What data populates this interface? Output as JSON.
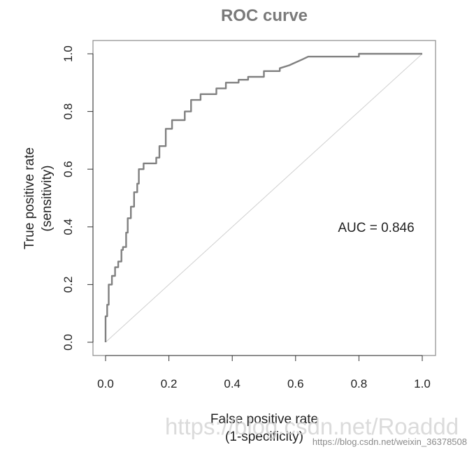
{
  "chart_data": {
    "type": "line",
    "title": "ROC curve",
    "xlabel_line1": "False positive rate",
    "xlabel_line2": "(1-specificity)",
    "ylabel_line1": "True positive rate",
    "ylabel_line2": "(sensitivity)",
    "xlim": [
      0,
      1
    ],
    "ylim": [
      0,
      1
    ],
    "x_ticks": [
      "0.0",
      "0.2",
      "0.4",
      "0.6",
      "0.8",
      "1.0"
    ],
    "y_ticks": [
      "0.0",
      "0.2",
      "0.4",
      "0.6",
      "0.8",
      "1.0"
    ],
    "grid": false,
    "annotation": "AUC = 0.846",
    "series": [
      {
        "color": "#808080",
        "x": [
          0.0,
          0.0,
          0.005,
          0.005,
          0.01,
          0.01,
          0.02,
          0.02,
          0.03,
          0.03,
          0.04,
          0.04,
          0.05,
          0.05,
          0.055,
          0.055,
          0.065,
          0.065,
          0.07,
          0.07,
          0.08,
          0.08,
          0.09,
          0.09,
          0.1,
          0.1,
          0.105,
          0.105,
          0.12,
          0.12,
          0.16,
          0.16,
          0.17,
          0.17,
          0.19,
          0.19,
          0.21,
          0.21,
          0.25,
          0.25,
          0.27,
          0.27,
          0.3,
          0.3,
          0.35,
          0.35,
          0.38,
          0.38,
          0.42,
          0.42,
          0.45,
          0.45,
          0.5,
          0.5,
          0.55,
          0.55,
          0.58,
          0.6,
          0.62,
          0.64,
          0.64,
          0.7,
          0.8,
          0.8,
          1.0
        ],
        "y": [
          0.0,
          0.09,
          0.09,
          0.13,
          0.13,
          0.2,
          0.2,
          0.23,
          0.23,
          0.26,
          0.26,
          0.28,
          0.28,
          0.32,
          0.32,
          0.33,
          0.33,
          0.38,
          0.38,
          0.43,
          0.43,
          0.47,
          0.47,
          0.52,
          0.52,
          0.55,
          0.55,
          0.6,
          0.6,
          0.62,
          0.62,
          0.64,
          0.64,
          0.68,
          0.68,
          0.74,
          0.74,
          0.77,
          0.77,
          0.8,
          0.8,
          0.84,
          0.84,
          0.86,
          0.86,
          0.88,
          0.88,
          0.9,
          0.9,
          0.91,
          0.91,
          0.92,
          0.92,
          0.94,
          0.94,
          0.95,
          0.96,
          0.97,
          0.98,
          0.99,
          0.99,
          0.99,
          0.99,
          1.0,
          1.0
        ]
      }
    ],
    "reference_line": {
      "x": [
        0,
        1
      ],
      "y": [
        0,
        1
      ],
      "color": "#d0d0d0"
    }
  },
  "watermark": {
    "main": "https://blog.csdn.net/Roaddd",
    "secondary": "https://blog.csdn.net/weixin_36378508"
  }
}
